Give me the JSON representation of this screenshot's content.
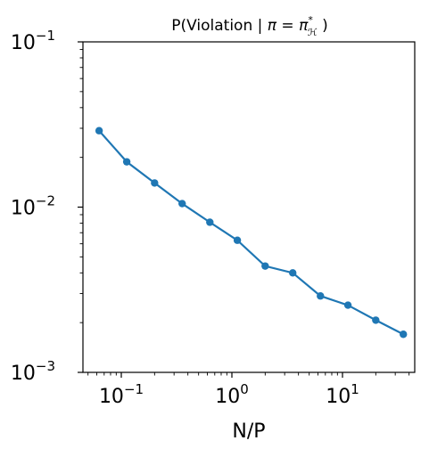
{
  "chart_data": {
    "type": "line",
    "title": {
      "prefix": "P(Violation | ",
      "pi": "π",
      "eq": " = ",
      "pi2": "π",
      "sub": "ℋ",
      "sup": "*",
      "suffix": " )"
    },
    "xlabel": "N/P",
    "ylabel": "",
    "xscale": "log",
    "yscale": "log",
    "xlim": [
      0.045,
      45
    ],
    "ylim": [
      0.001,
      0.1
    ],
    "grid": false,
    "series": [
      {
        "color": "#1f77b4",
        "x": [
          0.063,
          0.112,
          0.2,
          0.355,
          0.632,
          1.12,
          2.0,
          3.55,
          6.32,
          11.2,
          20.0,
          35.5
        ],
        "y": [
          0.029,
          0.0188,
          0.014,
          0.0105,
          0.0081,
          0.0063,
          0.0044,
          0.004,
          0.0029,
          0.00255,
          0.00207,
          0.0017
        ]
      }
    ],
    "xticks": [
      {
        "value": 0.1,
        "base": "10",
        "exp": "−1"
      },
      {
        "value": 1,
        "base": "10",
        "exp": "0"
      },
      {
        "value": 10,
        "base": "10",
        "exp": "1"
      }
    ],
    "yticks": [
      {
        "value": 0.001,
        "base": "10",
        "exp": "−3"
      },
      {
        "value": 0.01,
        "base": "10",
        "exp": "−2"
      },
      {
        "value": 0.1,
        "base": "10",
        "exp": "−1"
      }
    ]
  }
}
